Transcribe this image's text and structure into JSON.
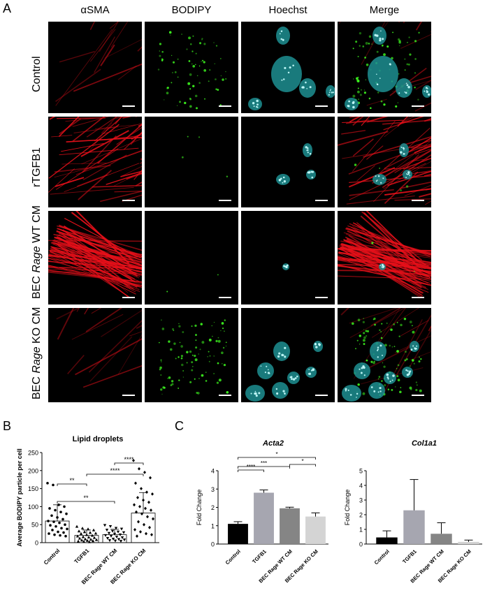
{
  "panels": {
    "a": "A",
    "b": "B",
    "c": "C"
  },
  "microscopy": {
    "columns": [
      {
        "label": "αSMA",
        "color": "#e02020"
      },
      {
        "label": "BODIPY",
        "color": "#44dd22"
      },
      {
        "label": "Hoechst",
        "color": "#33cccc"
      },
      {
        "label": "Merge",
        "color": "#000000"
      }
    ],
    "rows": [
      {
        "label_pre": "Control",
        "label_italic": "",
        "label_post": ""
      },
      {
        "label_pre": "rTGFB1",
        "label_italic": "",
        "label_post": ""
      },
      {
        "label_pre": "BEC ",
        "label_italic": "Rage",
        "label_post": " WT CM"
      },
      {
        "label_pre": "BEC ",
        "label_italic": "Rage",
        "label_post": " KO CM"
      }
    ]
  },
  "chart_data": [
    {
      "type": "scatter",
      "title": "Lipid droplets",
      "ylabel": "Average BODIPY particle per cell",
      "ylim": [
        0,
        250
      ],
      "yticks": [
        0,
        50,
        100,
        150,
        200,
        250
      ],
      "categories": [
        "Control",
        "TGFB1",
        "BEC Rage WT CM",
        "BEC Rage KO CM"
      ],
      "means": [
        60,
        20,
        22,
        82
      ],
      "sd": [
        45,
        15,
        15,
        57
      ],
      "markers": [
        "circle",
        "triangle-up",
        "triangle-down",
        "diamond"
      ],
      "points": [
        [
          165,
          160,
          105,
          100,
          95,
          90,
          85,
          80,
          75,
          70,
          65,
          60,
          58,
          55,
          50,
          48,
          45,
          40,
          38,
          35,
          30,
          28,
          25,
          22,
          20,
          18
        ],
        [
          45,
          40,
          38,
          35,
          32,
          30,
          28,
          26,
          25,
          22,
          20,
          18,
          16,
          15,
          14,
          12,
          10,
          9,
          8,
          7,
          6,
          5,
          4,
          3,
          2
        ],
        [
          48,
          45,
          40,
          38,
          35,
          32,
          30,
          28,
          26,
          24,
          22,
          20,
          18,
          16,
          14,
          12,
          10,
          9,
          8,
          6,
          5,
          4
        ],
        [
          228,
          205,
          195,
          180,
          165,
          150,
          140,
          135,
          125,
          118,
          112,
          105,
          100,
          95,
          90,
          85,
          80,
          72,
          66,
          58,
          50,
          42,
          36,
          30,
          25,
          22,
          18
        ]
      ],
      "significance": [
        {
          "from": 0,
          "to": 1,
          "label": "**"
        },
        {
          "from": 0,
          "to": 2,
          "label": "**"
        },
        {
          "from": 1,
          "to": 3,
          "label": "****"
        },
        {
          "from": 2,
          "to": 3,
          "label": "****"
        }
      ]
    },
    {
      "type": "bar",
      "title": "Acta2",
      "ylabel": "Fold Change",
      "ylim": [
        0,
        4
      ],
      "yticks": [
        0,
        1,
        2,
        3,
        4
      ],
      "categories": [
        "Control",
        "TGFB1",
        "BEC Rage WT CM",
        "BEC Rage KO CM"
      ],
      "values": [
        1.1,
        2.8,
        1.95,
        1.5
      ],
      "errors": [
        0.12,
        0.15,
        0.06,
        0.2
      ],
      "colors": [
        "#000000",
        "#a6a6b0",
        "#858585",
        "#d4d4d4"
      ],
      "significance": [
        {
          "from": 0,
          "to": 1,
          "label": "****"
        },
        {
          "from": 0,
          "to": 2,
          "label": "***"
        },
        {
          "from": 0,
          "to": 3,
          "label": "*"
        },
        {
          "from": 2,
          "to": 3,
          "label": "*"
        }
      ]
    },
    {
      "type": "bar",
      "title": "Col1a1",
      "ylabel": "Fold Change",
      "ylim": [
        0,
        5
      ],
      "yticks": [
        0,
        1,
        2,
        3,
        4,
        5
      ],
      "categories": [
        "Control",
        "TGFB1",
        "BEC Rage WT CM",
        "BEC Rage KO CM"
      ],
      "values": [
        0.45,
        2.3,
        0.7,
        0.15
      ],
      "errors": [
        0.45,
        2.1,
        0.75,
        0.12
      ],
      "colors": [
        "#000000",
        "#a6a6b0",
        "#858585",
        "#d4d4d4"
      ],
      "significance": []
    }
  ]
}
